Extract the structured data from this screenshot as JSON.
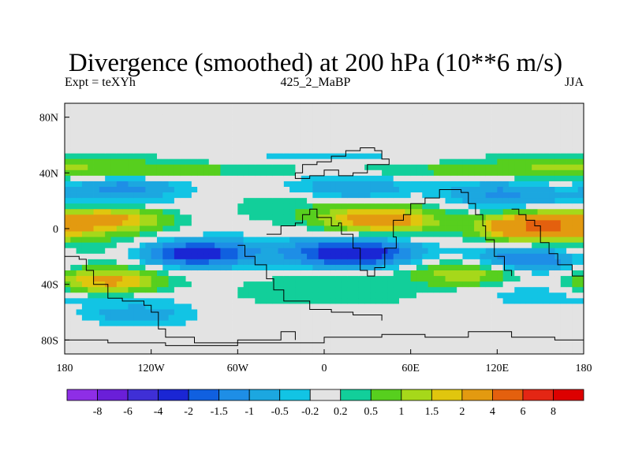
{
  "title": "Divergence (smoothed) at 200 hPa (10**6 m/s)",
  "subtitle_left": "Expt = teXYh",
  "subtitle_center": "425_2_MaBP",
  "subtitle_right": "JJA",
  "chart_data": {
    "type": "heatmap",
    "title": "Divergence (smoothed) at 200 hPa (10**6 m/s)",
    "x_tick_labels": [
      "180",
      "120W",
      "60W",
      "0",
      "60E",
      "120E",
      "180"
    ],
    "x_tick_values": [
      -180,
      -120,
      -60,
      0,
      60,
      120,
      180
    ],
    "y_tick_labels": [
      "80N",
      "40N",
      "0",
      "40S",
      "80S"
    ],
    "y_tick_values": [
      80,
      40,
      0,
      -40,
      -80
    ],
    "xlim": [
      -180,
      180
    ],
    "ylim": [
      -90,
      90
    ],
    "colorbar_labels": [
      "-8",
      "-6",
      "-4",
      "-2",
      "-1.5",
      "-1",
      "-0.5",
      "-0.2",
      "0.2",
      "0.5",
      "1",
      "1.5",
      "2",
      "4",
      "6",
      "8"
    ],
    "colorbar_colors": [
      "#8e2ee6",
      "#6a1fd8",
      "#3f2fd6",
      "#1a26d4",
      "#1060e0",
      "#1e8ee6",
      "#1ca7e0",
      "#12c4e4",
      "#e3e3e3",
      "#12cf9a",
      "#57cf1e",
      "#a6d81a",
      "#e0c60e",
      "#e39a10",
      "#e4600e",
      "#e42614",
      "#dd0000"
    ],
    "features": [
      {
        "kind": "band",
        "lat": 42,
        "lon": [
          -180,
          180
        ],
        "level": 0.7
      },
      {
        "kind": "blob",
        "lat": 30,
        "lon": -140,
        "level": -1.2
      },
      {
        "kind": "blob",
        "lat": 28,
        "lon": 20,
        "level": -1.0
      },
      {
        "kind": "blob",
        "lat": 26,
        "lon": 120,
        "level": -1.0
      },
      {
        "kind": "blob",
        "lat": 7,
        "lon": -150,
        "level": 2.5
      },
      {
        "kind": "blob",
        "lat": 6,
        "lon": 40,
        "level": 2.5
      },
      {
        "kind": "blob",
        "lat": 2,
        "lon": 150,
        "level": 4.5
      },
      {
        "kind": "blob",
        "lat": -18,
        "lon": -90,
        "level": -2.5
      },
      {
        "kind": "blob",
        "lat": -18,
        "lon": 20,
        "level": -2.5
      },
      {
        "kind": "blob",
        "lat": -22,
        "lon": 140,
        "level": -2.0
      },
      {
        "kind": "blob",
        "lat": -38,
        "lon": -150,
        "level": 2.5
      },
      {
        "kind": "blob",
        "lat": -32,
        "lon": 100,
        "level": 1.5
      },
      {
        "kind": "blob",
        "lat": -62,
        "lon": -130,
        "level": -0.8
      }
    ]
  }
}
